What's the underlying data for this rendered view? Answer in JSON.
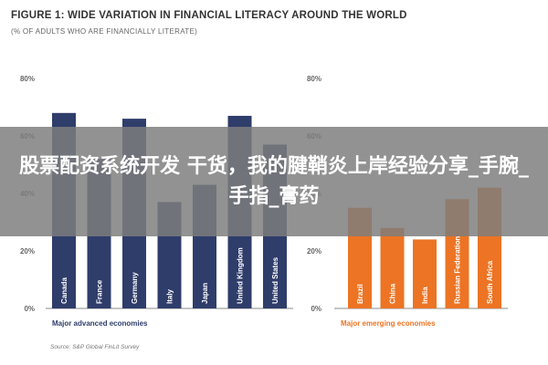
{
  "figure": {
    "title": "FIGURE 1: WIDE VARIATION IN FINANCIAL LITERACY AROUND THE WORLD",
    "subtitle": "(% OF ADULTS WHO ARE FINANCIALLY LITERATE)",
    "source": "Source: S&P Global FinLit Survey"
  },
  "banner": {
    "text": "股票配资系统开发 干货，我的腱鞘炎上岸经验分享_手腕_手指_膏药"
  },
  "colors": {
    "advanced": "#2f3d6b",
    "emerging": "#ec7424",
    "axis": "#888888",
    "grid": "#cccccc"
  },
  "chart_data": [
    {
      "type": "bar",
      "xlabel": "Major advanced economies",
      "ylim": [
        0,
        80
      ],
      "yticks": [
        "0%",
        "20%",
        "40%",
        "60%",
        "80%"
      ],
      "grid": false,
      "categories": [
        "Canada",
        "France",
        "Germany",
        "Italy",
        "Japan",
        "United Kingdom",
        "United States"
      ],
      "values": [
        68,
        52,
        66,
        37,
        43,
        67,
        57
      ],
      "color": "#2f3d6b"
    },
    {
      "type": "bar",
      "xlabel": "Major emerging economies",
      "ylim": [
        0,
        80
      ],
      "yticks": [
        "0%",
        "20%",
        "40%",
        "60%",
        "80%"
      ],
      "grid": false,
      "categories": [
        "Brazil",
        "China",
        "India",
        "Russian Federation",
        "South Africa"
      ],
      "values": [
        35,
        28,
        24,
        38,
        42
      ],
      "color": "#ec7424"
    }
  ]
}
